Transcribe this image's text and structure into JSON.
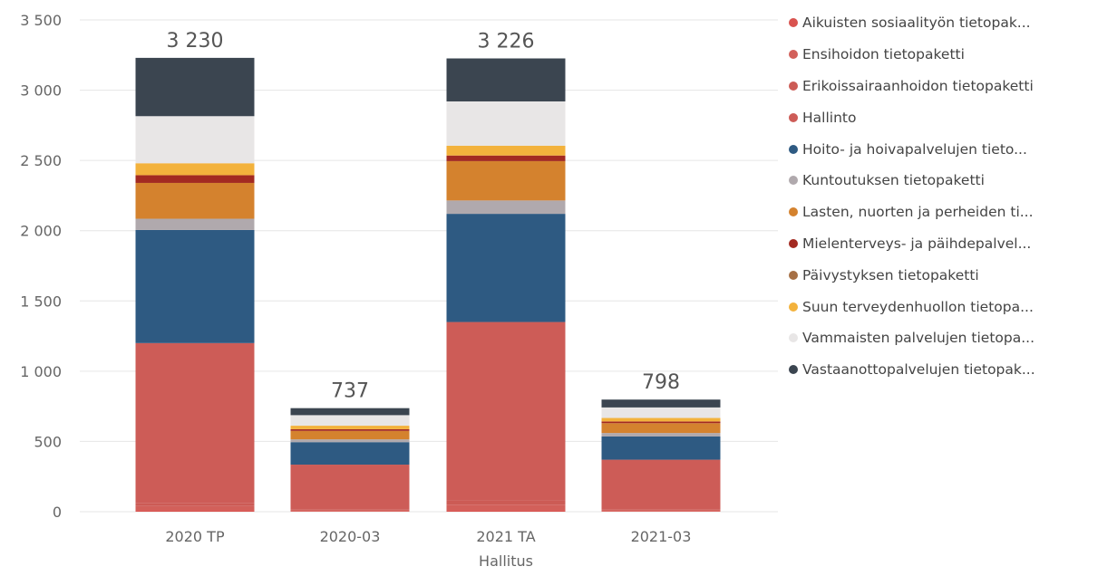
{
  "chart_data": {
    "type": "bar",
    "stacked": true,
    "categories": [
      "2020 TP",
      "2020-03",
      "2021 TA",
      "2021-03"
    ],
    "category_sublabels": [
      "",
      "",
      "Hallitus",
      ""
    ],
    "totals": [
      "3 230",
      "737",
      "3 226",
      "798"
    ],
    "ylim": [
      0,
      3500
    ],
    "yticks": [
      {
        "value": 0,
        "label": "0"
      },
      {
        "value": 500,
        "label": "500"
      },
      {
        "value": 1000,
        "label": "1 000"
      },
      {
        "value": 1500,
        "label": "1 500"
      },
      {
        "value": 2000,
        "label": "2 000"
      },
      {
        "value": 2500,
        "label": "2 500"
      },
      {
        "value": 3000,
        "label": "3 000"
      },
      {
        "value": 3500,
        "label": "3 500"
      }
    ],
    "grid": true,
    "legend_position": "right",
    "series": [
      {
        "name": "Aikuisten sosiaalityön tietopak...",
        "color": "#D9534F",
        "values": [
          10,
          5,
          10,
          5
        ]
      },
      {
        "name": "Ensihoidon tietopaketti",
        "color": "#D2605A",
        "values": [
          30,
          5,
          40,
          5
        ]
      },
      {
        "name": "Erikoissairaanhoidon tietopaketti",
        "color": "#CC5B55",
        "values": [
          20,
          5,
          30,
          5
        ]
      },
      {
        "name": "Hallinto",
        "color": "#CD5C57",
        "values": [
          1140,
          320,
          1270,
          355
        ]
      },
      {
        "name": "Hoito- ja hoivapalvelujen tieto...",
        "color": "#2E5A82",
        "values": [
          805,
          160,
          770,
          165
        ]
      },
      {
        "name": "Kuntoutuksen tietopaketti",
        "color": "#B0A9AD",
        "values": [
          80,
          20,
          95,
          25
        ]
      },
      {
        "name": "Lasten, nuorten ja perheiden ti...",
        "color": "#D4822E",
        "values": [
          255,
          60,
          280,
          70
        ]
      },
      {
        "name": "Mielenterveys- ja päihdepalvel...",
        "color": "#A32A21",
        "values": [
          55,
          12,
          40,
          12
        ]
      },
      {
        "name": "Päivystyksen tietopaketti",
        "color": "#A67045",
        "values": [
          0,
          0,
          0,
          0
        ]
      },
      {
        "name": "Suun terveydenhuollon tietopa...",
        "color": "#F3B23C",
        "values": [
          85,
          25,
          70,
          25
        ]
      },
      {
        "name": "Vammaisten palvelujen tietopa...",
        "color": "#E8E6E6",
        "values": [
          335,
          75,
          315,
          75
        ]
      },
      {
        "name": "Vastaanottopalvelujen tietopak...",
        "color": "#3B4550",
        "values": [
          415,
          50,
          306,
          56
        ]
      }
    ]
  }
}
